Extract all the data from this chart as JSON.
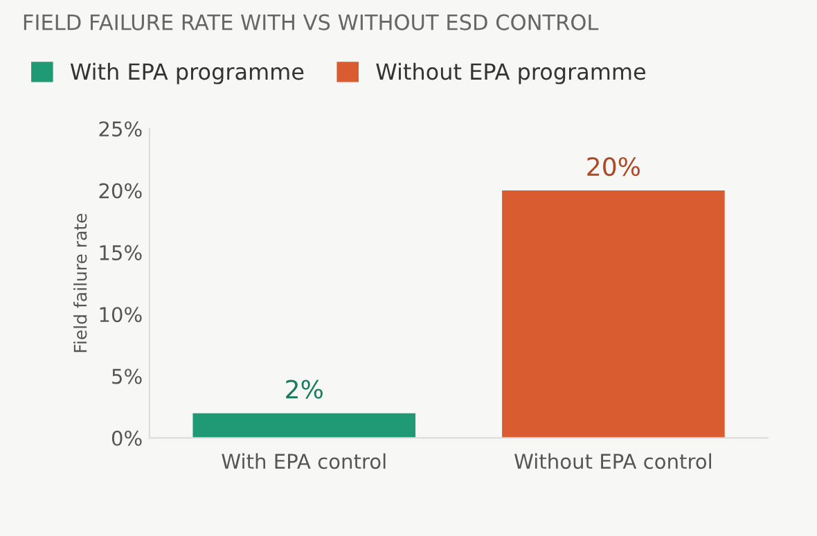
{
  "chart_data": {
    "type": "bar",
    "title": "FIELD FAILURE RATE WITH VS WITHOUT ESD CONTROL",
    "ylabel": "Field failure rate",
    "categories": [
      "With EPA control",
      "Without EPA control"
    ],
    "series": [
      {
        "name": "With EPA programme",
        "color": "#1f9a74",
        "values": [
          2,
          null
        ],
        "value_labels": [
          "2%",
          null
        ]
      },
      {
        "name": "Without EPA programme",
        "color": "#d95b30",
        "values": [
          null,
          20
        ],
        "value_labels": [
          null,
          "20%"
        ]
      }
    ],
    "ylim": [
      0,
      25
    ],
    "yticks": [
      {
        "value": 0,
        "label": "0%"
      },
      {
        "value": 5,
        "label": "5%"
      },
      {
        "value": 10,
        "label": "10%"
      },
      {
        "value": 15,
        "label": "15%"
      },
      {
        "value": 20,
        "label": "20%"
      },
      {
        "value": 25,
        "label": "25%"
      }
    ],
    "grid": false,
    "legend": "top left"
  }
}
